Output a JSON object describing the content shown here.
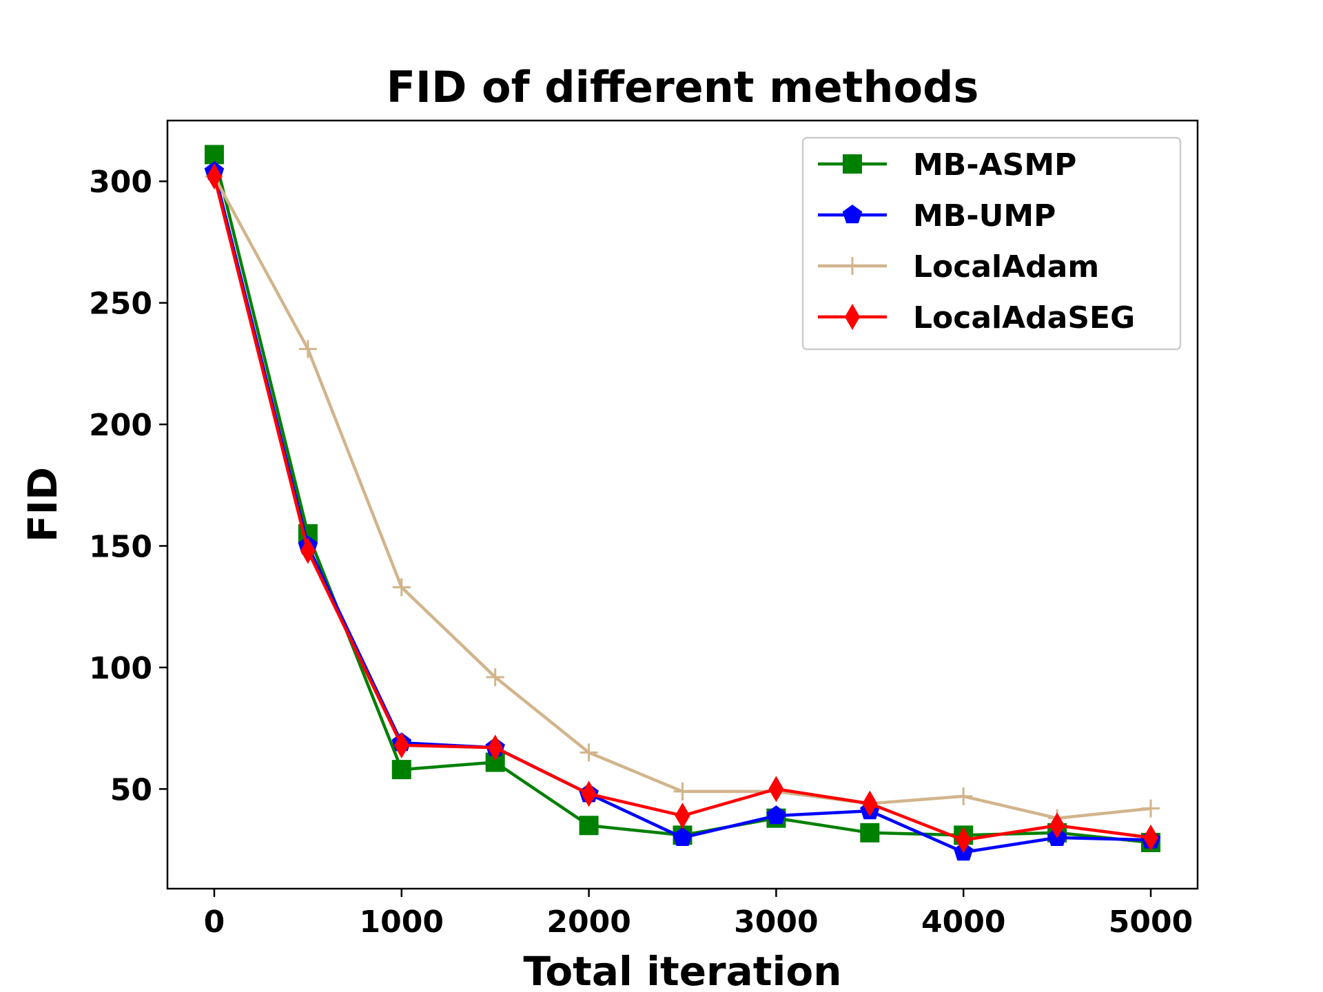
{
  "chart_data": {
    "type": "line",
    "title": "FID of different methods",
    "xlabel": "Total iteration",
    "ylabel": "FID",
    "xlim": [
      -250,
      5250
    ],
    "ylim": [
      9,
      325
    ],
    "x_ticks": [
      0,
      1000,
      2000,
      3000,
      4000,
      5000
    ],
    "y_ticks": [
      50,
      100,
      150,
      200,
      250,
      300
    ],
    "grid": false,
    "legend_position": "top-right",
    "x": [
      0,
      500,
      1000,
      1500,
      2000,
      2500,
      3000,
      3500,
      4000,
      4500,
      5000
    ],
    "series": [
      {
        "name": "MB-ASMP",
        "color": "#008000",
        "marker": "square",
        "values": [
          311,
          155,
          58,
          61,
          35,
          31,
          38,
          32,
          31,
          32,
          28
        ]
      },
      {
        "name": "MB-UMP",
        "color": "#0000ff",
        "marker": "pentagon",
        "values": [
          304,
          150,
          69,
          67,
          48,
          30,
          39,
          41,
          24,
          30,
          29
        ]
      },
      {
        "name": "LocalAdam",
        "color": "#d2b48c",
        "marker": "plus",
        "values": [
          302,
          231,
          133,
          96,
          65,
          49,
          49,
          44,
          47,
          38,
          42
        ]
      },
      {
        "name": "LocalAdaSEG",
        "color": "#ff0000",
        "marker": "diamond",
        "values": [
          302,
          148,
          68,
          67,
          48,
          39,
          50,
          44,
          29,
          35,
          30
        ]
      }
    ]
  }
}
